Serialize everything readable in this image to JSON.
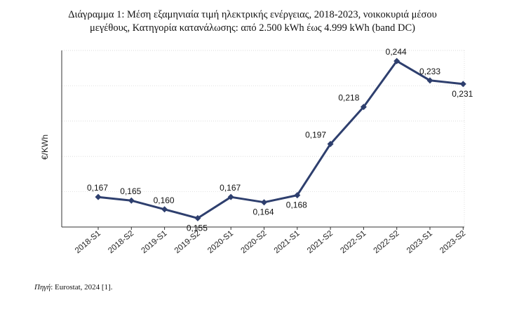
{
  "title_line1": "Διάγραμμα 1: Μέση εξαμηνιαία τιμή ηλεκτρικής ενέργειας, 2018-2023, νοικοκυριά μέσου",
  "title_line2": "μεγέθους, Κατηγορία κατανάλωσης: από 2.500 kWh έως 4.999 kWh (band DC)",
  "source_label": "Πηγή",
  "source_text": ": Eurostat, 2024 [1].",
  "chart_data": {
    "type": "line",
    "ylabel": "€/KWh",
    "categories": [
      "2018-S1",
      "2018-S2",
      "2019-S1",
      "2019-S2",
      "2020-S1",
      "2020-S2",
      "2021-S1",
      "2021-S2",
      "2022-S1",
      "2022-S2",
      "2023-S1",
      "2023-S2"
    ],
    "values": [
      0.167,
      0.165,
      0.16,
      0.155,
      0.167,
      0.164,
      0.168,
      0.197,
      0.218,
      0.244,
      0.233,
      0.231
    ],
    "value_labels": [
      "0,167",
      "0,165",
      "0,160",
      "0,155",
      "0,167",
      "0,164",
      "0,168",
      "0,197",
      "0,218",
      "0,244",
      "0,233",
      "0,231"
    ],
    "ylim": [
      0.15,
      0.25
    ],
    "grid": true,
    "line_color": "#2e3f6e"
  }
}
